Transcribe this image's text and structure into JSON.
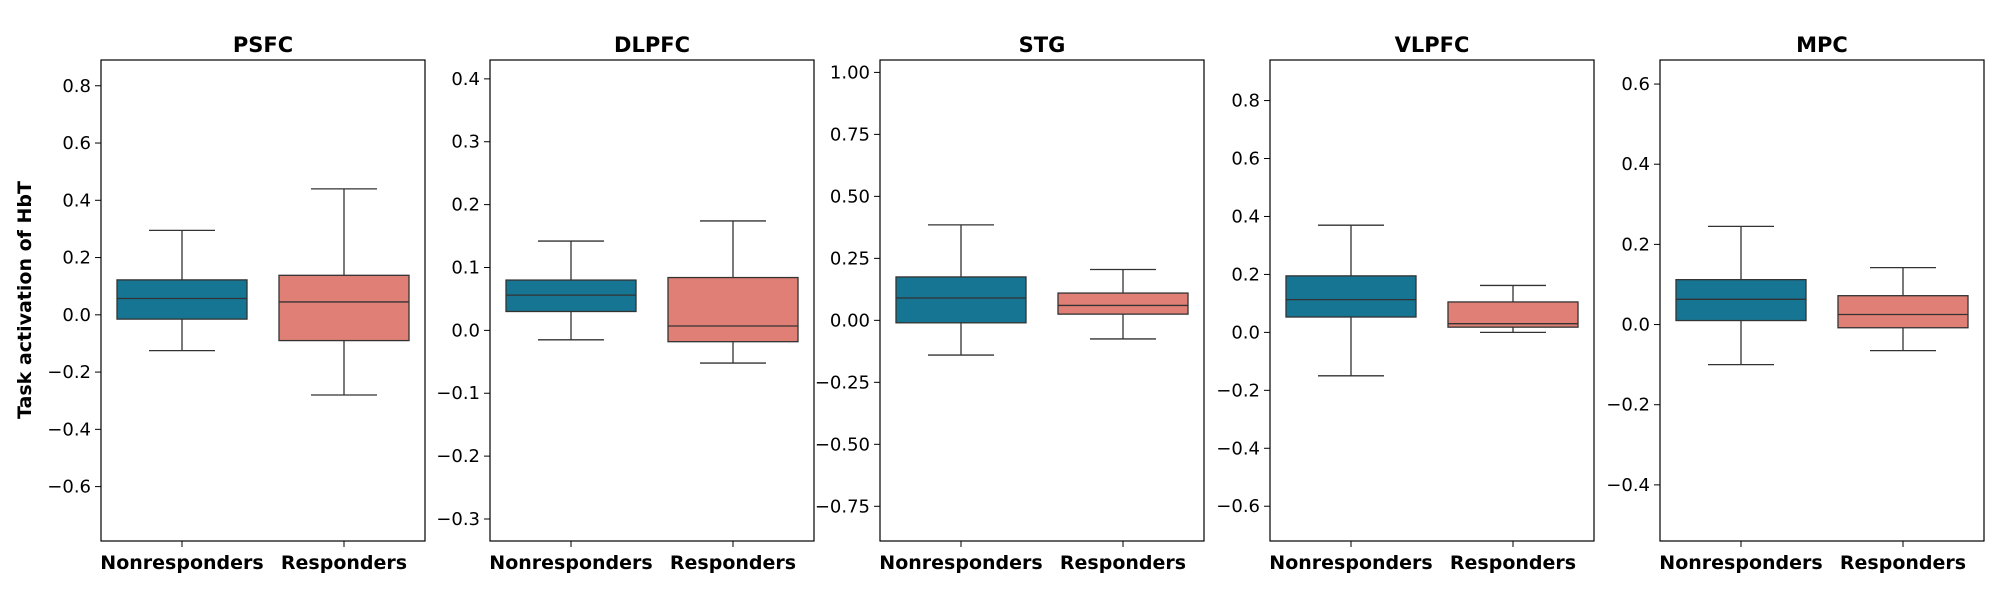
{
  "colors": {
    "nonresponders": "#167593",
    "responders": "#e07f76",
    "line": "#333333"
  },
  "ylabel": "Task activation of HbT",
  "chart_data": [
    {
      "type": "box",
      "title": "PSFC",
      "categories": [
        "Nonresponders",
        "Responders"
      ],
      "ylim": [
        -0.79,
        0.89
      ],
      "yticks": [
        -0.6,
        -0.4,
        -0.2,
        0.0,
        0.2,
        0.4,
        0.6,
        0.8
      ],
      "boxes": [
        {
          "whisker_low": -0.125,
          "q1": -0.015,
          "median": 0.057,
          "q3": 0.122,
          "whisker_high": 0.295
        },
        {
          "whisker_low": -0.28,
          "q1": -0.09,
          "median": 0.045,
          "q3": 0.138,
          "whisker_high": 0.44
        }
      ]
    },
    {
      "type": "box",
      "title": "DLPFC",
      "categories": [
        "Nonresponders",
        "Responders"
      ],
      "ylim": [
        -0.335,
        0.43
      ],
      "yticks": [
        -0.3,
        -0.2,
        -0.1,
        0.0,
        0.1,
        0.2,
        0.3,
        0.4
      ],
      "boxes": [
        {
          "whisker_low": -0.015,
          "q1": 0.03,
          "median": 0.056,
          "q3": 0.08,
          "whisker_high": 0.142
        },
        {
          "whisker_low": -0.052,
          "q1": -0.018,
          "median": 0.007,
          "q3": 0.084,
          "whisker_high": 0.174
        }
      ]
    },
    {
      "type": "box",
      "title": "STG",
      "categories": [
        "Nonresponders",
        "Responders"
      ],
      "ylim": [
        -0.89,
        1.05
      ],
      "yticks": [
        -0.75,
        -0.5,
        -0.25,
        0.0,
        0.25,
        0.5,
        0.75,
        1.0
      ],
      "ytick_labels": [
        "−0.75",
        "−0.50",
        "−0.25",
        "0.00",
        "0.25",
        "0.50",
        "0.75",
        "1.00"
      ],
      "boxes": [
        {
          "whisker_low": -0.14,
          "q1": -0.01,
          "median": 0.09,
          "q3": 0.175,
          "whisker_high": 0.385
        },
        {
          "whisker_low": -0.075,
          "q1": 0.025,
          "median": 0.06,
          "q3": 0.11,
          "whisker_high": 0.205
        }
      ]
    },
    {
      "type": "box",
      "title": "VLPFC",
      "categories": [
        "Nonresponders",
        "Responders"
      ],
      "ylim": [
        -0.72,
        0.94
      ],
      "yticks": [
        -0.6,
        -0.4,
        -0.2,
        0.0,
        0.2,
        0.4,
        0.6,
        0.8
      ],
      "boxes": [
        {
          "whisker_low": -0.15,
          "q1": 0.053,
          "median": 0.113,
          "q3": 0.195,
          "whisker_high": 0.37
        },
        {
          "whisker_low": 0.0,
          "q1": 0.018,
          "median": 0.03,
          "q3": 0.105,
          "whisker_high": 0.162
        }
      ]
    },
    {
      "type": "box",
      "title": "MPC",
      "categories": [
        "Nonresponders",
        "Responders"
      ],
      "ylim": [
        -0.54,
        0.66
      ],
      "yticks": [
        -0.4,
        -0.2,
        0.0,
        0.2,
        0.4,
        0.6
      ],
      "boxes": [
        {
          "whisker_low": -0.1,
          "q1": 0.01,
          "median": 0.063,
          "q3": 0.112,
          "whisker_high": 0.245
        },
        {
          "whisker_low": -0.065,
          "q1": -0.008,
          "median": 0.025,
          "q3": 0.072,
          "whisker_high": 0.142
        }
      ]
    }
  ]
}
